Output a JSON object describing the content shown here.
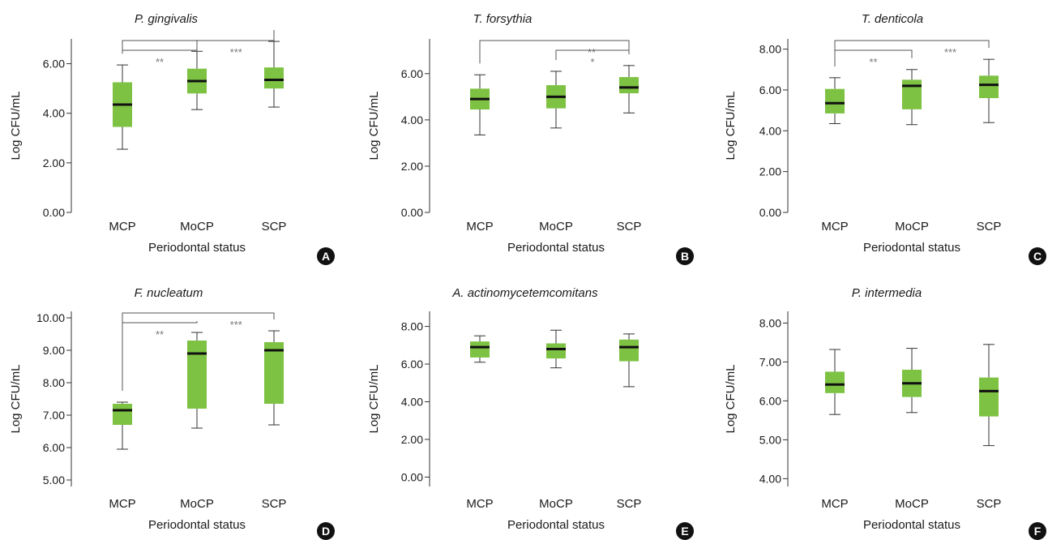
{
  "chart_data": [
    {
      "type": "box",
      "panel": "A",
      "title": "P. gingivalis",
      "xlabel": "Periodontal status",
      "ylabel": "Log CFU/mL",
      "categories": [
        "MCP",
        "MoCP",
        "SCP"
      ],
      "ylim": [
        0,
        7
      ],
      "yticks": [
        "0.00",
        "2.00",
        "4.00",
        "6.00"
      ],
      "ytick_values": [
        0,
        2,
        4,
        6
      ],
      "boxes": [
        {
          "min": 2.55,
          "q1": 3.45,
          "median": 4.35,
          "q3": 5.25,
          "max": 5.95
        },
        {
          "min": 4.15,
          "q1": 4.8,
          "median": 5.3,
          "q3": 5.8,
          "max": 6.5
        },
        {
          "min": 4.25,
          "q1": 5.0,
          "median": 5.35,
          "q3": 5.85,
          "max": 6.9
        }
      ],
      "significance": [
        {
          "from": 0,
          "to": 1,
          "label": "**",
          "level": 1
        },
        {
          "from": 0,
          "to": 2,
          "label": "***",
          "level": 2
        }
      ]
    },
    {
      "type": "box",
      "panel": "B",
      "title": "T. forsythia",
      "xlabel": "Periodontal status",
      "ylabel": "Log CFU/mL",
      "categories": [
        "MCP",
        "MoCP",
        "SCP"
      ],
      "ylim": [
        0,
        7.5
      ],
      "yticks": [
        "0.00",
        "2.00",
        "4.00",
        "6.00"
      ],
      "ytick_values": [
        0,
        2,
        4,
        6
      ],
      "boxes": [
        {
          "min": 3.35,
          "q1": 4.45,
          "median": 4.9,
          "q3": 5.35,
          "max": 5.95
        },
        {
          "min": 3.65,
          "q1": 4.5,
          "median": 5.0,
          "q3": 5.5,
          "max": 6.1
        },
        {
          "min": 4.3,
          "q1": 5.15,
          "median": 5.4,
          "q3": 5.85,
          "max": 6.35
        }
      ],
      "significance": [
        {
          "from": 0,
          "to": 2,
          "label": "**",
          "level": 2
        },
        {
          "from": 1,
          "to": 2,
          "label": "*",
          "level": 1
        }
      ]
    },
    {
      "type": "box",
      "panel": "C",
      "title": "T. denticola",
      "xlabel": "Periodontal status",
      "ylabel": "Log CFU/mL",
      "categories": [
        "MCP",
        "MoCP",
        "SCP"
      ],
      "ylim": [
        0,
        8.5
      ],
      "yticks": [
        "0.00",
        "2.00",
        "4.00",
        "6.00",
        "8.00"
      ],
      "ytick_values": [
        0,
        2,
        4,
        6,
        8
      ],
      "boxes": [
        {
          "min": 4.35,
          "q1": 4.85,
          "median": 5.35,
          "q3": 6.05,
          "max": 6.6
        },
        {
          "min": 4.3,
          "q1": 5.05,
          "median": 6.2,
          "q3": 6.5,
          "max": 7.0
        },
        {
          "min": 4.4,
          "q1": 5.6,
          "median": 6.25,
          "q3": 6.7,
          "max": 7.5
        }
      ],
      "significance": [
        {
          "from": 0,
          "to": 1,
          "label": "**",
          "level": 1
        },
        {
          "from": 0,
          "to": 2,
          "label": "***",
          "level": 2
        }
      ]
    },
    {
      "type": "box",
      "panel": "D",
      "title": "F. nucleatum",
      "xlabel": "Periodontal status",
      "ylabel": "Log CFU/mL",
      "categories": [
        "MCP",
        "MoCP",
        "SCP"
      ],
      "ylim": [
        4.8,
        10.2
      ],
      "yticks": [
        "5.00",
        "6.00",
        "7.00",
        "8.00",
        "9.00",
        "10.00"
      ],
      "ytick_values": [
        5,
        6,
        7,
        8,
        9,
        10
      ],
      "boxes": [
        {
          "min": 5.95,
          "q1": 6.7,
          "median": 7.15,
          "q3": 7.35,
          "max": 7.4
        },
        {
          "min": 6.6,
          "q1": 7.2,
          "median": 8.9,
          "q3": 9.3,
          "max": 9.55
        },
        {
          "min": 6.7,
          "q1": 7.35,
          "median": 9.0,
          "q3": 9.25,
          "max": 9.6
        }
      ],
      "significance": [
        {
          "from": 0,
          "to": 1,
          "label": "**",
          "level": 1
        },
        {
          "from": 0,
          "to": 2,
          "label": "***",
          "level": 2
        }
      ]
    },
    {
      "type": "box",
      "panel": "E",
      "title": "A. actinomycetemcomitans",
      "xlabel": "Periodontal status",
      "ylabel": "Log CFU/mL",
      "categories": [
        "MCP",
        "MoCP",
        "SCP"
      ],
      "ylim": [
        -0.5,
        8.8
      ],
      "yticks": [
        "0.00",
        "2.00",
        "4.00",
        "6.00",
        "8.00"
      ],
      "ytick_values": [
        0,
        2,
        4,
        6,
        8
      ],
      "boxes": [
        {
          "min": 6.1,
          "q1": 6.35,
          "median": 6.9,
          "q3": 7.2,
          "max": 7.5
        },
        {
          "min": 5.8,
          "q1": 6.3,
          "median": 6.8,
          "q3": 7.1,
          "max": 7.8
        },
        {
          "min": 4.8,
          "q1": 6.15,
          "median": 6.9,
          "q3": 7.3,
          "max": 7.6
        }
      ],
      "significance": []
    },
    {
      "type": "box",
      "panel": "F",
      "title": "P. intermedia",
      "xlabel": "Periodontal status",
      "ylabel": "Log CFU/mL",
      "categories": [
        "MCP",
        "MoCP",
        "SCP"
      ],
      "ylim": [
        3.8,
        8.3
      ],
      "yticks": [
        "4.00",
        "5.00",
        "6.00",
        "7.00",
        "8.00"
      ],
      "ytick_values": [
        4,
        5,
        6,
        7,
        8
      ],
      "boxes": [
        {
          "min": 5.65,
          "q1": 6.2,
          "median": 6.42,
          "q3": 6.75,
          "max": 7.32
        },
        {
          "min": 5.7,
          "q1": 6.1,
          "median": 6.45,
          "q3": 6.8,
          "max": 7.35
        },
        {
          "min": 4.85,
          "q1": 5.6,
          "median": 6.25,
          "q3": 6.6,
          "max": 7.45
        }
      ],
      "significance": []
    }
  ],
  "colors": {
    "box_fill": "#7dc242",
    "median": "#111111",
    "axis": "#333333",
    "badge": "#111111"
  }
}
